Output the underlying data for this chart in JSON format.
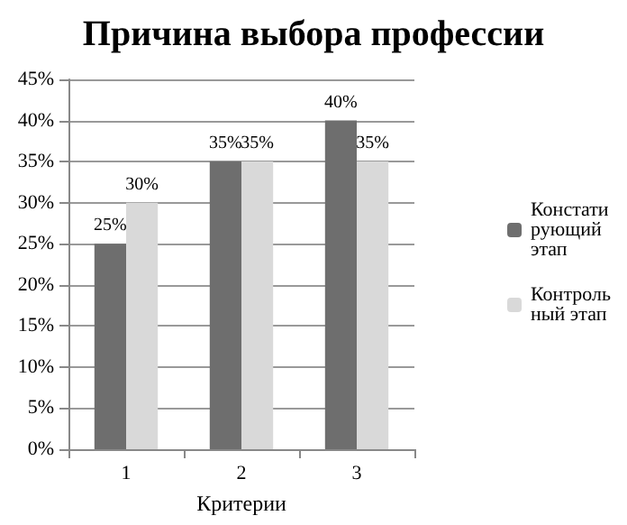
{
  "chart_data": {
    "type": "bar",
    "title": "Причина выбора профессии",
    "xlabel": "Критерии",
    "categories": [
      "1",
      "2",
      "3"
    ],
    "series": [
      {
        "name": "Констатирующий этап",
        "color": "#6e6e6e",
        "values": [
          25,
          35,
          40
        ],
        "value_labels": [
          "25%",
          "35%",
          "40%"
        ]
      },
      {
        "name": "Контрольный этап",
        "color": "#d9d9d9",
        "values": [
          30,
          35,
          35
        ],
        "value_labels": [
          "30%",
          "35%",
          "35%"
        ]
      }
    ],
    "ylim": [
      0,
      45
    ],
    "yticks": [
      {
        "value": 0,
        "label": "0%"
      },
      {
        "value": 5,
        "label": "5%"
      },
      {
        "value": 10,
        "label": "10%"
      },
      {
        "value": 15,
        "label": "15%"
      },
      {
        "value": 20,
        "label": "20%"
      },
      {
        "value": 25,
        "label": "25%"
      },
      {
        "value": 30,
        "label": "30%"
      },
      {
        "value": 35,
        "label": "35%"
      },
      {
        "value": 40,
        "label": "40%"
      },
      {
        "value": 45,
        "label": "45%"
      }
    ],
    "grid": "y",
    "legend": "right"
  }
}
